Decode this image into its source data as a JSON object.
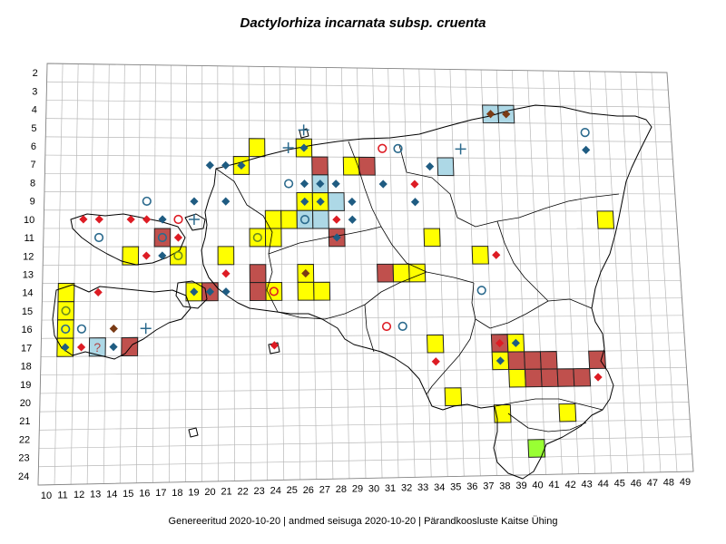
{
  "title": "Dactylorhiza incarnata subsp. cruenta",
  "footer": {
    "generated": "Genereeritud 2020-10-20",
    "data_state": "andmed seisuga 2020-10-20",
    "publisher": "Pärandkoosluste Kaitse Ühing"
  },
  "axes": {
    "x_ticks": [
      10,
      11,
      12,
      13,
      14,
      15,
      16,
      17,
      18,
      19,
      20,
      21,
      22,
      23,
      24,
      25,
      26,
      27,
      28,
      29,
      30,
      31,
      32,
      33,
      34,
      35,
      36,
      37,
      38,
      39,
      40,
      41,
      42,
      43,
      44,
      45,
      46,
      47,
      48,
      49
    ],
    "y_ticks": [
      2,
      3,
      4,
      5,
      6,
      7,
      8,
      9,
      10,
      11,
      12,
      13,
      14,
      15,
      16,
      17,
      18,
      19,
      20,
      21,
      22,
      23,
      24
    ]
  },
  "colors": {
    "yellow": "#ffff00",
    "red": "#c0504d",
    "blue": "#add8e6",
    "green": "#99ff33",
    "diamond_blue": "#1f5c82",
    "diamond_red": "#dd1c24",
    "diamond_brown": "#7a3b15",
    "circle_red": "#dd1c24",
    "circle_blue": "#2b6a8d",
    "cross_blue": "#2b6a8d"
  },
  "cells": [
    {
      "x": 23,
      "y": 6,
      "c": "yellow"
    },
    {
      "x": 26,
      "y": 6,
      "c": "yellow"
    },
    {
      "x": 22,
      "y": 7,
      "c": "yellow"
    },
    {
      "x": 27,
      "y": 7,
      "c": "red"
    },
    {
      "x": 29,
      "y": 7,
      "c": "yellow"
    },
    {
      "x": 30,
      "y": 7,
      "c": "red"
    },
    {
      "x": 35,
      "y": 7,
      "c": "blue"
    },
    {
      "x": 38,
      "y": 4,
      "c": "blue"
    },
    {
      "x": 39,
      "y": 4,
      "c": "blue"
    },
    {
      "x": 27,
      "y": 8,
      "c": "blue"
    },
    {
      "x": 26,
      "y": 9,
      "c": "yellow"
    },
    {
      "x": 27,
      "y": 9,
      "c": "yellow"
    },
    {
      "x": 28,
      "y": 9,
      "c": "blue"
    },
    {
      "x": 24,
      "y": 10,
      "c": "yellow"
    },
    {
      "x": 25,
      "y": 10,
      "c": "yellow"
    },
    {
      "x": 26,
      "y": 10,
      "c": "blue"
    },
    {
      "x": 27,
      "y": 10,
      "c": "blue"
    },
    {
      "x": 45,
      "y": 10,
      "c": "yellow"
    },
    {
      "x": 17,
      "y": 11,
      "c": "red"
    },
    {
      "x": 23,
      "y": 11,
      "c": "yellow"
    },
    {
      "x": 24,
      "y": 11,
      "c": "yellow"
    },
    {
      "x": 28,
      "y": 11,
      "c": "red"
    },
    {
      "x": 34,
      "y": 11,
      "c": "yellow"
    },
    {
      "x": 15,
      "y": 12,
      "c": "yellow"
    },
    {
      "x": 18,
      "y": 12,
      "c": "yellow"
    },
    {
      "x": 21,
      "y": 12,
      "c": "yellow"
    },
    {
      "x": 37,
      "y": 12,
      "c": "yellow"
    },
    {
      "x": 23,
      "y": 13,
      "c": "red"
    },
    {
      "x": 26,
      "y": 13,
      "c": "yellow"
    },
    {
      "x": 31,
      "y": 13,
      "c": "red"
    },
    {
      "x": 32,
      "y": 13,
      "c": "yellow"
    },
    {
      "x": 33,
      "y": 13,
      "c": "yellow"
    },
    {
      "x": 11,
      "y": 14,
      "c": "yellow"
    },
    {
      "x": 19,
      "y": 14,
      "c": "yellow"
    },
    {
      "x": 20,
      "y": 14,
      "c": "red"
    },
    {
      "x": 23,
      "y": 14,
      "c": "red"
    },
    {
      "x": 24,
      "y": 14,
      "c": "yellow"
    },
    {
      "x": 26,
      "y": 14,
      "c": "yellow"
    },
    {
      "x": 27,
      "y": 14,
      "c": "yellow"
    },
    {
      "x": 11,
      "y": 15,
      "c": "yellow"
    },
    {
      "x": 11,
      "y": 16,
      "c": "yellow"
    },
    {
      "x": 11,
      "y": 17,
      "c": "yellow"
    },
    {
      "x": 13,
      "y": 17,
      "c": "blue",
      "label": "?"
    },
    {
      "x": 15,
      "y": 17,
      "c": "red"
    },
    {
      "x": 34,
      "y": 17,
      "c": "yellow"
    },
    {
      "x": 38,
      "y": 17,
      "c": "red"
    },
    {
      "x": 39,
      "y": 17,
      "c": "yellow"
    },
    {
      "x": 38,
      "y": 18,
      "c": "yellow"
    },
    {
      "x": 39,
      "y": 18,
      "c": "red"
    },
    {
      "x": 40,
      "y": 18,
      "c": "red"
    },
    {
      "x": 41,
      "y": 18,
      "c": "red"
    },
    {
      "x": 44,
      "y": 18,
      "c": "red"
    },
    {
      "x": 39,
      "y": 19,
      "c": "yellow"
    },
    {
      "x": 40,
      "y": 19,
      "c": "red"
    },
    {
      "x": 41,
      "y": 19,
      "c": "red"
    },
    {
      "x": 42,
      "y": 19,
      "c": "red"
    },
    {
      "x": 43,
      "y": 19,
      "c": "red"
    },
    {
      "x": 35,
      "y": 20,
      "c": "yellow"
    },
    {
      "x": 38,
      "y": 21,
      "c": "yellow"
    },
    {
      "x": 42,
      "y": 21,
      "c": "yellow"
    },
    {
      "x": 40,
      "y": 23,
      "c": "green"
    }
  ],
  "markers": [
    {
      "x": 38,
      "y": 4,
      "s": "diamond",
      "c": "diamond_brown"
    },
    {
      "x": 39,
      "y": 4,
      "s": "diamond",
      "c": "diamond_brown"
    },
    {
      "x": 44,
      "y": 5,
      "s": "circle",
      "c": "circle_blue"
    },
    {
      "x": 44,
      "y": 6,
      "s": "diamond",
      "c": "diamond_blue"
    },
    {
      "x": 26,
      "y": 5,
      "s": "cross",
      "c": "cross_blue"
    },
    {
      "x": 25,
      "y": 6,
      "s": "cross",
      "c": "cross_blue"
    },
    {
      "x": 26,
      "y": 6,
      "s": "diamond",
      "c": "diamond_blue"
    },
    {
      "x": 31,
      "y": 6,
      "s": "circle",
      "c": "circle_red"
    },
    {
      "x": 32,
      "y": 6,
      "s": "circle",
      "c": "circle_blue"
    },
    {
      "x": 36,
      "y": 6,
      "s": "cross",
      "c": "cross_blue"
    },
    {
      "x": 20,
      "y": 7,
      "s": "diamond",
      "c": "diamond_blue"
    },
    {
      "x": 21,
      "y": 7,
      "s": "diamond",
      "c": "diamond_blue"
    },
    {
      "x": 22,
      "y": 7,
      "s": "diamond",
      "c": "diamond_blue"
    },
    {
      "x": 34,
      "y": 7,
      "s": "diamond",
      "c": "diamond_blue"
    },
    {
      "x": 25,
      "y": 8,
      "s": "circle",
      "c": "circle_blue"
    },
    {
      "x": 26,
      "y": 8,
      "s": "diamond",
      "c": "diamond_blue"
    },
    {
      "x": 27,
      "y": 8,
      "s": "diamond",
      "c": "diamond_blue"
    },
    {
      "x": 28,
      "y": 8,
      "s": "diamond",
      "c": "diamond_blue"
    },
    {
      "x": 31,
      "y": 8,
      "s": "diamond",
      "c": "diamond_blue"
    },
    {
      "x": 33,
      "y": 8,
      "s": "diamond",
      "c": "diamond_red"
    },
    {
      "x": 16,
      "y": 9,
      "s": "circle",
      "c": "circle_blue"
    },
    {
      "x": 19,
      "y": 9,
      "s": "diamond",
      "c": "diamond_blue"
    },
    {
      "x": 21,
      "y": 9,
      "s": "diamond",
      "c": "diamond_blue"
    },
    {
      "x": 26,
      "y": 9,
      "s": "diamond",
      "c": "diamond_blue"
    },
    {
      "x": 27,
      "y": 9,
      "s": "diamond",
      "c": "diamond_blue"
    },
    {
      "x": 29,
      "y": 9,
      "s": "diamond",
      "c": "diamond_blue"
    },
    {
      "x": 33,
      "y": 9,
      "s": "diamond",
      "c": "diamond_blue"
    },
    {
      "x": 12,
      "y": 10,
      "s": "diamond",
      "c": "diamond_red"
    },
    {
      "x": 13,
      "y": 10,
      "s": "diamond",
      "c": "diamond_red"
    },
    {
      "x": 15,
      "y": 10,
      "s": "diamond",
      "c": "diamond_red"
    },
    {
      "x": 16,
      "y": 10,
      "s": "diamond",
      "c": "diamond_red"
    },
    {
      "x": 17,
      "y": 10,
      "s": "diamond",
      "c": "diamond_blue"
    },
    {
      "x": 18,
      "y": 10,
      "s": "circle",
      "c": "circle_red"
    },
    {
      "x": 19,
      "y": 10,
      "s": "cross",
      "c": "cross_blue"
    },
    {
      "x": 26,
      "y": 10,
      "s": "circle",
      "c": "circle_blue"
    },
    {
      "x": 28,
      "y": 10,
      "s": "diamond",
      "c": "diamond_red"
    },
    {
      "x": 29,
      "y": 10,
      "s": "diamond",
      "c": "diamond_blue"
    },
    {
      "x": 13,
      "y": 11,
      "s": "circle",
      "c": "circle_blue"
    },
    {
      "x": 17,
      "y": 11,
      "s": "circle",
      "c": "circle_blue"
    },
    {
      "x": 18,
      "y": 11,
      "s": "diamond",
      "c": "diamond_red"
    },
    {
      "x": 23,
      "y": 11,
      "s": "circle",
      "c": "circle_yellowdark"
    },
    {
      "x": 28,
      "y": 11,
      "s": "diamond",
      "c": "diamond_blue"
    },
    {
      "x": 16,
      "y": 12,
      "s": "diamond",
      "c": "diamond_red"
    },
    {
      "x": 17,
      "y": 12,
      "s": "diamond",
      "c": "diamond_blue"
    },
    {
      "x": 18,
      "y": 12,
      "s": "circle",
      "c": "circle_yellowdark"
    },
    {
      "x": 38,
      "y": 12,
      "s": "diamond",
      "c": "diamond_red"
    },
    {
      "x": 21,
      "y": 13,
      "s": "diamond",
      "c": "diamond_red"
    },
    {
      "x": 26,
      "y": 13,
      "s": "diamond",
      "c": "diamond_brown"
    },
    {
      "x": 13,
      "y": 14,
      "s": "diamond",
      "c": "diamond_red"
    },
    {
      "x": 19,
      "y": 14,
      "s": "diamond",
      "c": "diamond_blue"
    },
    {
      "x": 20,
      "y": 14,
      "s": "diamond",
      "c": "diamond_blue"
    },
    {
      "x": 21,
      "y": 14,
      "s": "diamond",
      "c": "diamond_blue"
    },
    {
      "x": 24,
      "y": 14,
      "s": "circle",
      "c": "circle_red"
    },
    {
      "x": 37,
      "y": 14,
      "s": "circle",
      "c": "circle_blue"
    },
    {
      "x": 11,
      "y": 15,
      "s": "circle",
      "c": "circle_yellowdark"
    },
    {
      "x": 11,
      "y": 16,
      "s": "circle",
      "c": "circle_blue"
    },
    {
      "x": 12,
      "y": 16,
      "s": "circle",
      "c": "circle_blue"
    },
    {
      "x": 14,
      "y": 16,
      "s": "diamond",
      "c": "diamond_brown"
    },
    {
      "x": 16,
      "y": 16,
      "s": "cross",
      "c": "cross_blue"
    },
    {
      "x": 31,
      "y": 16,
      "s": "circle",
      "c": "circle_red"
    },
    {
      "x": 32,
      "y": 16,
      "s": "circle",
      "c": "circle_blue"
    },
    {
      "x": 11,
      "y": 17,
      "s": "diamond",
      "c": "diamond_blue"
    },
    {
      "x": 12,
      "y": 17,
      "s": "diamond",
      "c": "diamond_red"
    },
    {
      "x": 14,
      "y": 17,
      "s": "diamond",
      "c": "diamond_blue"
    },
    {
      "x": 24,
      "y": 17,
      "s": "diamond",
      "c": "diamond_red"
    },
    {
      "x": 38,
      "y": 17,
      "s": "diamond",
      "c": "diamond_red"
    },
    {
      "x": 39,
      "y": 17,
      "s": "diamond",
      "c": "diamond_blue"
    },
    {
      "x": 34,
      "y": 18,
      "s": "diamond",
      "c": "diamond_red"
    },
    {
      "x": 38,
      "y": 18,
      "s": "diamond",
      "c": "diamond_blue"
    },
    {
      "x": 44,
      "y": 19,
      "s": "diamond",
      "c": "diamond_red"
    }
  ]
}
